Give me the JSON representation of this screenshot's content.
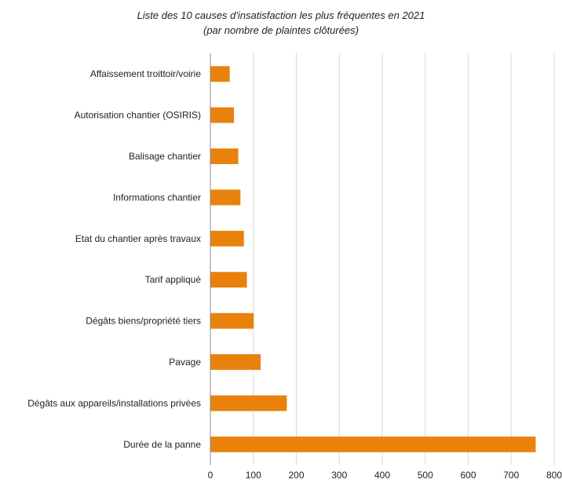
{
  "chart_data": {
    "type": "bar",
    "orientation": "horizontal",
    "title": "Liste des 10 causes d'insatisfaction les plus fréquentes en 2021",
    "subtitle": "(par nombre de plaintes clôturées)",
    "categories": [
      "Affaissement troittoir/voirie",
      "Autorisation chantier (OSIRIS)",
      "Balisage chantier",
      "Informations chantier",
      "Etat du chantier après travaux",
      "Tarif appliqué",
      "Dégâts biens/propriété tiers",
      "Pavage",
      "Dégâts aux appareils/installations privées",
      "Durée de la panne"
    ],
    "values": [
      45,
      55,
      65,
      70,
      78,
      85,
      101,
      117,
      178,
      757
    ],
    "xlim": [
      0,
      800
    ],
    "xticks": [
      "0",
      "100",
      "200",
      "300",
      "400",
      "500",
      "600",
      "700",
      "800"
    ],
    "grid": true,
    "legend": "none",
    "bar_color": "#E8820C"
  }
}
